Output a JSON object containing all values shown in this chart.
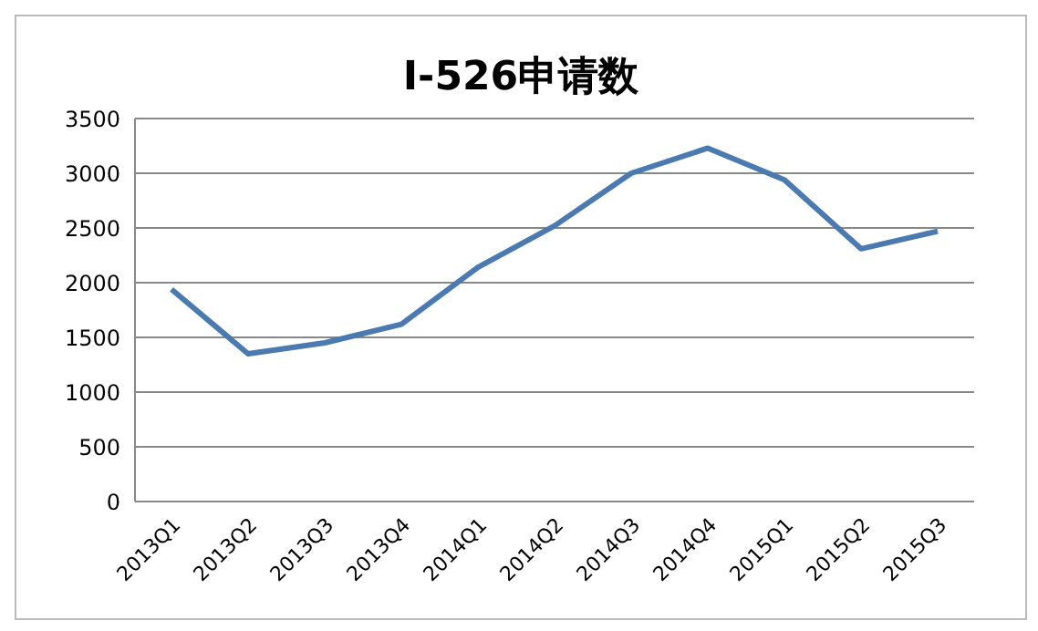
{
  "chart_data": {
    "type": "line",
    "title": "I-526申请数",
    "categories": [
      "2013Q1",
      "2013Q2",
      "2013Q3",
      "2013Q4",
      "2014Q1",
      "2014Q2",
      "2014Q3",
      "2014Q4",
      "2015Q1",
      "2015Q2",
      "2015Q3"
    ],
    "series": [
      {
        "color": "#4a7ab0",
        "values": [
          1940,
          1350,
          1450,
          1620,
          2140,
          2520,
          3000,
          3230,
          2940,
          2310,
          2470
        ]
      }
    ],
    "ylim": [
      0,
      3500
    ],
    "yticks": [
      0,
      500,
      1000,
      1500,
      2000,
      2500,
      3000,
      3500
    ],
    "grid": "y",
    "marker": "none",
    "line_style": "solid",
    "legend": false
  }
}
